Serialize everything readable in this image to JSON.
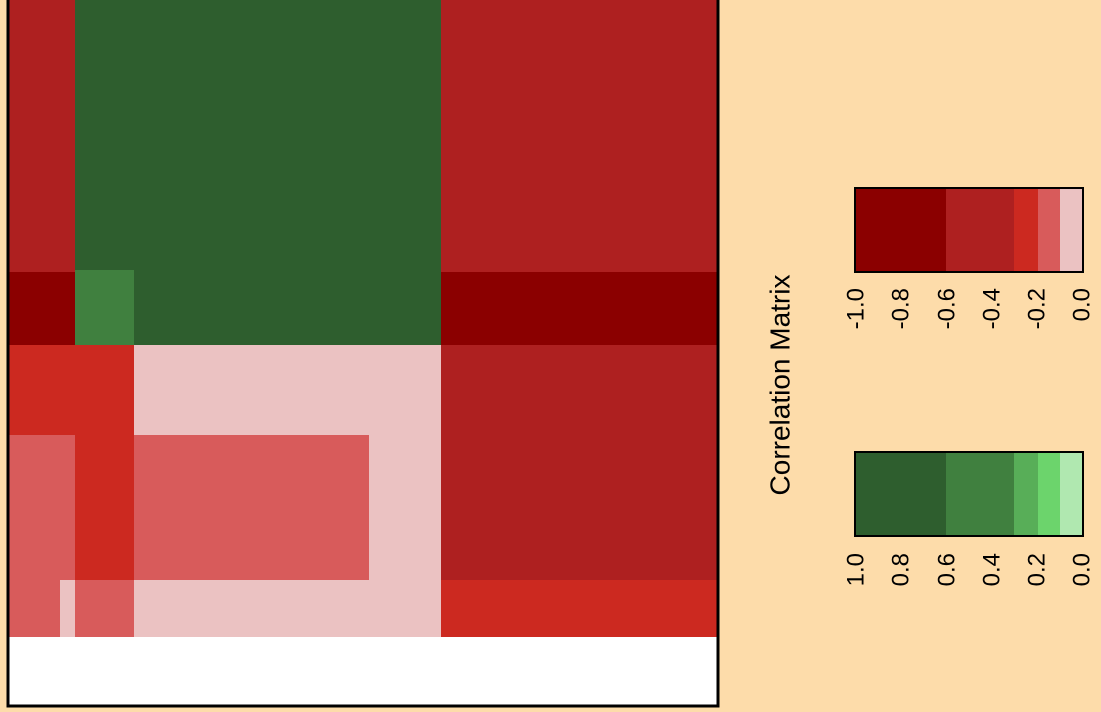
{
  "title": "Correlation Matrix",
  "legend": {
    "negative": {
      "labels": [
        "-1.0",
        "-0.8",
        "-0.6",
        "-0.4",
        "-0.2",
        "0.0"
      ]
    },
    "positive": {
      "labels": [
        "1.0",
        "0.8",
        "0.6",
        "0.4",
        "0.2",
        "0.0"
      ]
    }
  }
}
